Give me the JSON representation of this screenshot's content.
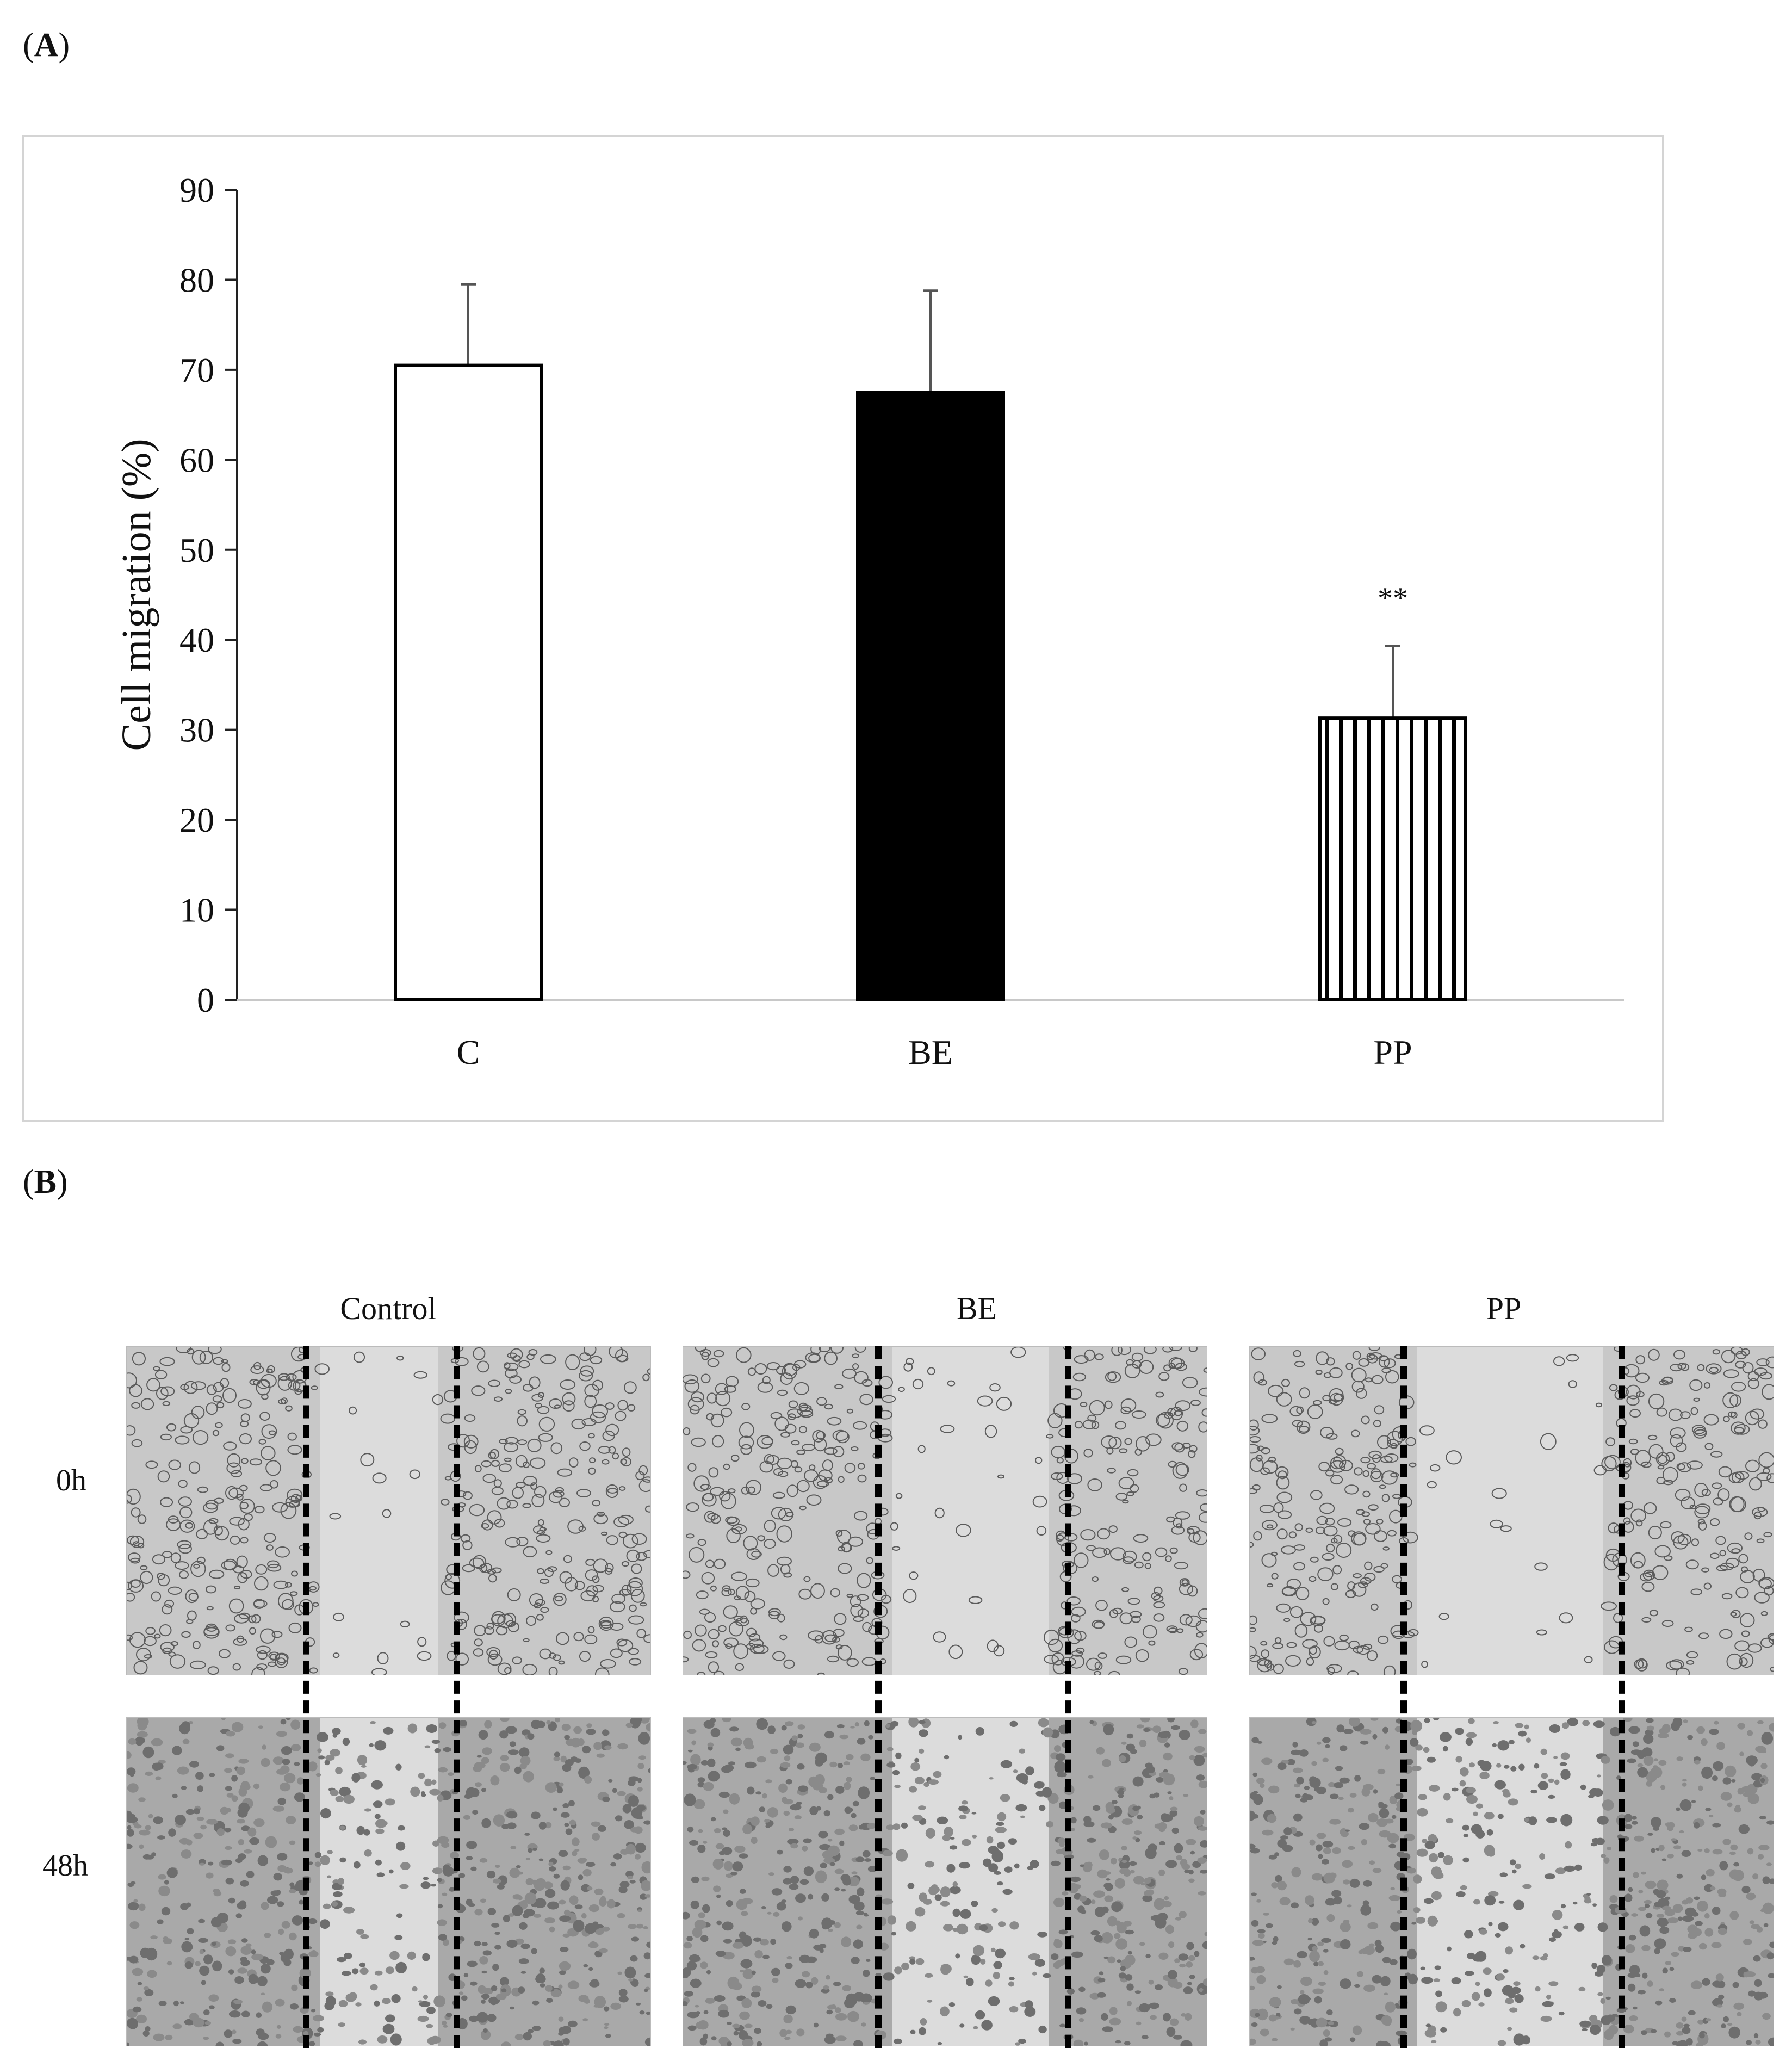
{
  "panels": {
    "a_letter": "A",
    "b_letter": "B"
  },
  "chart_data": {
    "type": "bar",
    "categories": [
      "C",
      "BE",
      "PP"
    ],
    "values": [
      70.5,
      67.5,
      31.3
    ],
    "errors": [
      9.0,
      11.3,
      8.0
    ],
    "significance": [
      "",
      "",
      "**"
    ],
    "fills": [
      "white",
      "black",
      "vertical-stripes"
    ],
    "ylabel": "Cell migration (%)",
    "xlabel": "",
    "ylim": [
      0,
      90
    ],
    "yticks": [
      0,
      10,
      20,
      30,
      40,
      50,
      60,
      70,
      80,
      90
    ],
    "grid": false
  },
  "micrographs": {
    "columns": [
      "Control",
      "BE",
      "PP"
    ],
    "rows": [
      "0h",
      "48h"
    ]
  }
}
